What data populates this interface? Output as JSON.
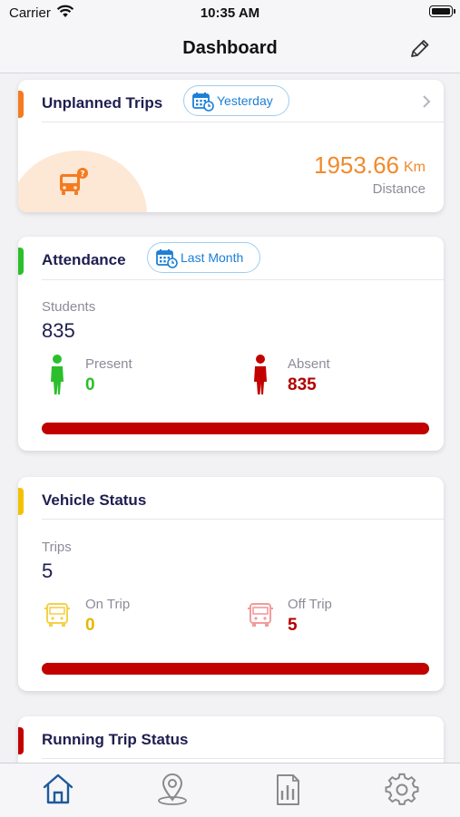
{
  "status_bar": {
    "carrier": "Carrier",
    "time": "10:35 AM"
  },
  "nav": {
    "title": "Dashboard",
    "edit_icon": "pencil-icon"
  },
  "unplanned_trips": {
    "title": "Unplanned Trips",
    "filter_label": "Yesterday",
    "distance_value": "1953.66",
    "distance_unit": "Km",
    "distance_label": "Distance",
    "accent_color": "#f47b20"
  },
  "attendance": {
    "title": "Attendance",
    "filter_label": "Last Month",
    "students_label": "Students",
    "students_count": "835",
    "present_label": "Present",
    "present_count": "0",
    "absent_label": "Absent",
    "absent_count": "835",
    "present_fraction": 0,
    "accent_color": "#2bbf2b"
  },
  "vehicle_status": {
    "title": "Vehicle Status",
    "trips_label": "Trips",
    "trips_count": "5",
    "on_trip_label": "On Trip",
    "on_trip_count": "0",
    "off_trip_label": "Off Trip",
    "off_trip_count": "5",
    "on_trip_fraction": 0,
    "accent_color": "#f2c200"
  },
  "running_trip_status": {
    "title": "Running Trip Status",
    "accent_color": "#c20000"
  },
  "colors": {
    "present": "#2bbf2b",
    "absent": "#c20000",
    "on_trip": "#e6b800",
    "off_trip": "#c20000",
    "distance": "#f08a2c",
    "pill": "#1b7fd6"
  },
  "tab_bar": {
    "items": [
      "home-icon",
      "location-pin-icon",
      "report-icon",
      "settings-gear-icon"
    ],
    "active": "home-icon"
  }
}
